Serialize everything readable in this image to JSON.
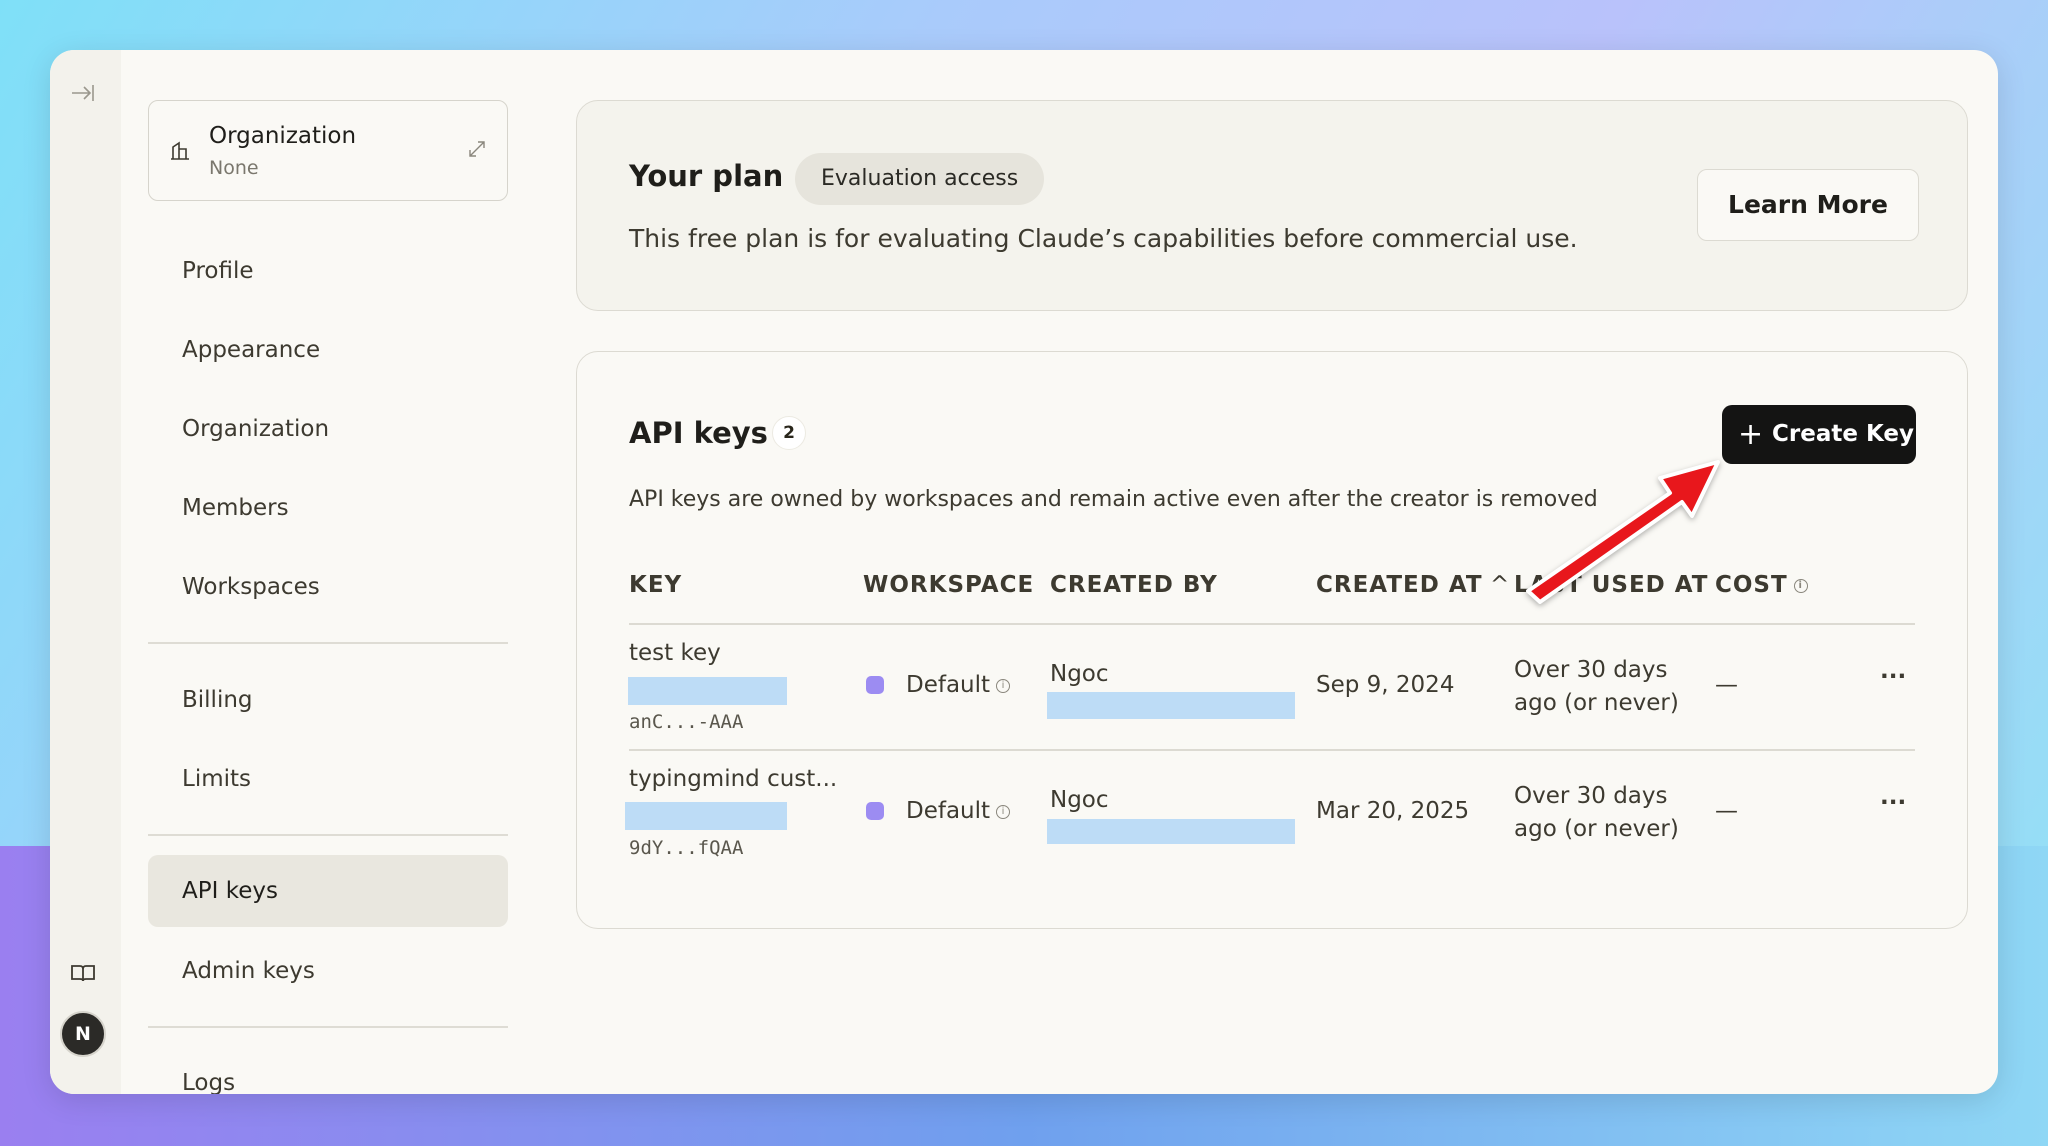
{
  "sidebar": {
    "org_label": "Organization",
    "org_value": "None",
    "items": [
      "Profile",
      "Appearance",
      "Organization",
      "Members",
      "Workspaces",
      "Billing",
      "Limits",
      "API keys",
      "Admin keys",
      "Logs"
    ],
    "active": "API keys",
    "avatar_initial": "N"
  },
  "plan": {
    "title": "Your plan",
    "badge": "Evaluation access",
    "description": "This free plan is for evaluating Claude’s capabilities before commercial use.",
    "learn_more": "Learn More"
  },
  "api_keys": {
    "title": "API keys",
    "count": "2",
    "description": "API keys are owned by workspaces and remain active even after the creator is removed",
    "create_button": "Create Key",
    "columns": [
      "KEY",
      "WORKSPACE",
      "CREATED BY",
      "CREATED AT",
      "LAST USED AT",
      "COST"
    ],
    "sort_indicator": "^",
    "rows": [
      {
        "name": "test key",
        "key_hint": "anC...-AAA",
        "workspace": "Default",
        "created_by": "Ngoc",
        "created_at": "Sep 9, 2024",
        "last_used": [
          "Over 30 days",
          "ago (or never)"
        ],
        "cost": "—",
        "menu": "···"
      },
      {
        "name": "typingmind cust...",
        "key_hint": "9dY...fQAA",
        "workspace": "Default",
        "created_by": "Ngoc",
        "created_at": "Mar 20, 2025",
        "last_used": [
          "Over 30 days",
          "ago (or never)"
        ],
        "cost": "—",
        "menu": "···"
      }
    ]
  },
  "colors": {
    "workspace_dot": "#9c8cf2",
    "annotation_arrow": "#e8171c",
    "primary_button": "#141413",
    "redaction": "#bddcf6"
  }
}
